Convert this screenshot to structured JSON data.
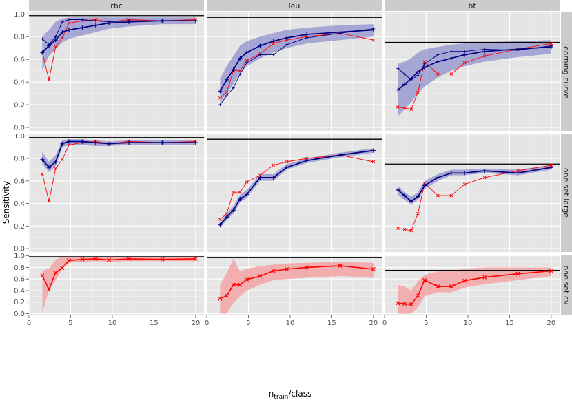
{
  "chart_data": {
    "type": "line",
    "title": "",
    "xlabel_main": "n",
    "xlabel_sub": "train",
    "xlabel_tail": "/class",
    "ylabel": "Sensitivity",
    "columns": [
      "rbc",
      "leu",
      "bt"
    ],
    "rows": [
      "learning curve",
      "one set large",
      "one set cv"
    ],
    "xlim": [
      0,
      21
    ],
    "ylim": [
      -0.03,
      1.02
    ],
    "x_ticks": [
      0,
      5,
      10,
      15,
      20
    ],
    "y_ticks": [
      0.0,
      0.2,
      0.4,
      0.6,
      0.8,
      1.0
    ],
    "y_tick_labels": [
      "0.0",
      "0.2",
      "0.4",
      "0.6",
      "0.8",
      "1.0"
    ],
    "reference_lines": {
      "rbc": 0.985,
      "leu": 0.97,
      "bt": 0.75
    },
    "colors": {
      "blue": "#000080",
      "blue_band": "#7b7bc8",
      "red": "#ff0000",
      "red_band": "#f4a4a4",
      "panel_bg": "#e5e5e5",
      "strip_bg": "#cccccc",
      "grid": "#ffffff",
      "ref_line": "#000000"
    },
    "x": {
      "rbc": [
        1.6,
        2.4,
        3.2,
        4.0,
        4.8,
        6.4,
        8.0,
        9.6,
        12.0,
        16.0,
        20.0
      ],
      "leu": [
        1.6,
        2.4,
        3.2,
        4.0,
        4.8,
        6.4,
        8.0,
        9.6,
        12.0,
        16.0,
        20.0
      ],
      "bt": [
        1.6,
        2.4,
        3.2,
        4.0,
        4.8,
        6.4,
        8.0,
        9.6,
        12.0,
        16.0,
        20.0
      ]
    },
    "red_series": {
      "rbc": [
        0.66,
        0.42,
        0.71,
        0.79,
        0.92,
        0.94,
        0.95,
        0.93,
        0.95,
        0.94,
        0.95
      ],
      "leu": [
        0.26,
        0.31,
        0.5,
        0.5,
        0.59,
        0.65,
        0.74,
        0.77,
        0.8,
        0.83,
        0.77
      ],
      "bt": [
        0.18,
        0.17,
        0.16,
        0.31,
        0.58,
        0.47,
        0.47,
        0.57,
        0.63,
        0.69,
        0.74
      ]
    },
    "red_band": {
      "rbc": {
        "lower": [
          0.02,
          0.4,
          0.58,
          0.78,
          0.88,
          0.9,
          0.91,
          0.9,
          0.91,
          0.91,
          0.91
        ],
        "upper": [
          0.74,
          0.78,
          0.93,
          0.99,
          0.99,
          0.99,
          0.99,
          0.99,
          0.99,
          0.99,
          0.99
        ]
      },
      "leu": {
        "lower": [
          0.0,
          0.0,
          0.18,
          0.3,
          0.4,
          0.5,
          0.58,
          0.6,
          0.62,
          0.65,
          0.62
        ],
        "upper": [
          0.5,
          0.7,
          0.95,
          0.73,
          0.78,
          0.82,
          0.85,
          0.87,
          0.88,
          0.9,
          0.88
        ]
      },
      "bt": {
        "lower": [
          0.0,
          0.0,
          0.0,
          0.1,
          0.3,
          0.37,
          0.37,
          0.45,
          0.51,
          0.58,
          0.65
        ],
        "upper": [
          0.5,
          0.47,
          0.4,
          0.56,
          0.67,
          0.73,
          0.73,
          0.78,
          0.8,
          0.8,
          0.8
        ]
      }
    },
    "blue_mean": {
      "learning curve": {
        "rbc": [
          0.66,
          0.72,
          0.77,
          0.84,
          0.86,
          0.88,
          0.9,
          0.92,
          0.93,
          0.94,
          0.94
        ],
        "leu": [
          0.32,
          0.42,
          0.51,
          0.61,
          0.66,
          0.72,
          0.76,
          0.79,
          0.82,
          0.84,
          0.86
        ],
        "bt": [
          0.33,
          0.38,
          0.43,
          0.49,
          0.53,
          0.58,
          0.61,
          0.64,
          0.67,
          0.69,
          0.71
        ]
      },
      "one set large": {
        "rbc": [
          0.79,
          0.72,
          0.77,
          0.93,
          0.95,
          0.95,
          0.94,
          0.93,
          0.94,
          0.94,
          0.94
        ],
        "leu": [
          0.21,
          0.28,
          0.34,
          0.44,
          0.48,
          0.63,
          0.63,
          0.72,
          0.78,
          0.83,
          0.87
        ],
        "bt": [
          0.52,
          0.47,
          0.42,
          0.46,
          0.56,
          0.63,
          0.67,
          0.67,
          0.69,
          0.67,
          0.72
        ]
      }
    },
    "blue_band": {
      "learning curve": {
        "rbc": {
          "lower": [
            0.5,
            0.63,
            0.69,
            0.75,
            0.78,
            0.81,
            0.84,
            0.87,
            0.89,
            0.91,
            0.91
          ],
          "upper": [
            0.8,
            0.86,
            0.93,
            0.96,
            0.97,
            0.97,
            0.97,
            0.97,
            0.97,
            0.97,
            0.97
          ]
        },
        "leu": {
          "lower": [
            0.22,
            0.3,
            0.38,
            0.48,
            0.54,
            0.61,
            0.66,
            0.7,
            0.74,
            0.77,
            0.8
          ],
          "upper": [
            0.43,
            0.54,
            0.63,
            0.72,
            0.76,
            0.8,
            0.83,
            0.86,
            0.88,
            0.9,
            0.91
          ]
        },
        "bt": {
          "lower": [
            0.1,
            0.16,
            0.22,
            0.3,
            0.36,
            0.44,
            0.5,
            0.54,
            0.58,
            0.62,
            0.65
          ],
          "upper": [
            0.56,
            0.58,
            0.61,
            0.66,
            0.69,
            0.71,
            0.73,
            0.74,
            0.75,
            0.76,
            0.77
          ]
        }
      },
      "one set large": {
        "rbc": {
          "lower": [
            0.75,
            0.68,
            0.73,
            0.9,
            0.92,
            0.92,
            0.91,
            0.91,
            0.92,
            0.92,
            0.92
          ],
          "upper": [
            0.86,
            0.77,
            0.83,
            0.96,
            0.97,
            0.97,
            0.96,
            0.95,
            0.96,
            0.96,
            0.96
          ]
        },
        "leu": {
          "lower": [
            0.19,
            0.25,
            0.31,
            0.41,
            0.45,
            0.6,
            0.6,
            0.7,
            0.76,
            0.81,
            0.85
          ],
          "upper": [
            0.24,
            0.31,
            0.38,
            0.48,
            0.52,
            0.66,
            0.66,
            0.75,
            0.8,
            0.85,
            0.89
          ]
        },
        "bt": {
          "lower": [
            0.48,
            0.43,
            0.39,
            0.43,
            0.53,
            0.6,
            0.65,
            0.65,
            0.67,
            0.65,
            0.7
          ],
          "upper": [
            0.56,
            0.5,
            0.46,
            0.5,
            0.6,
            0.66,
            0.7,
            0.7,
            0.71,
            0.7,
            0.74
          ]
        }
      }
    },
    "blue_thin": {
      "learning curve": {
        "rbc": [
          0.78,
          0.73,
          0.8,
          0.93,
          0.95,
          0.95,
          0.94,
          0.93,
          0.94,
          0.94,
          0.94
        ],
        "leu": [
          0.2,
          0.28,
          0.35,
          0.47,
          0.57,
          0.64,
          0.64,
          0.73,
          0.79,
          0.83,
          0.87
        ],
        "bt": [
          0.52,
          0.47,
          0.42,
          0.46,
          0.56,
          0.64,
          0.67,
          0.67,
          0.69,
          0.68,
          0.72
        ]
      }
    }
  }
}
